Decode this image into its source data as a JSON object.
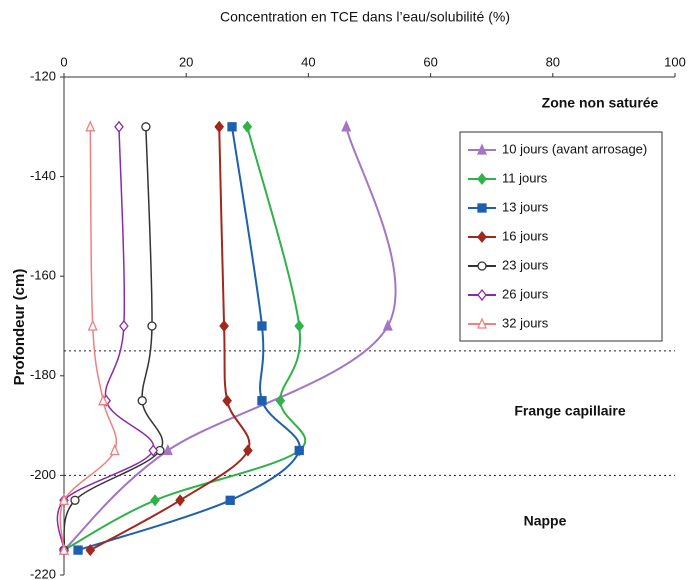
{
  "chart_data": {
    "type": "line",
    "title": "Concentration en TCE dans l’eau/solubilité (%)",
    "y_label": "Profondeur (cm)",
    "xlim": [
      0,
      100
    ],
    "xticks": [
      0,
      20,
      40,
      60,
      80,
      100
    ],
    "ylim": [
      -220,
      -120
    ],
    "yticks": [
      -120,
      -140,
      -160,
      -180,
      -200,
      -220
    ],
    "hlines": [
      -175,
      -200
    ],
    "annotations": [
      "Zone non saturée",
      "Frange capillaire",
      "Nappe"
    ],
    "legend": "upper-right",
    "series": [
      {
        "name": "10 jours (avant arrosage)",
        "color": "#a276c4",
        "marker": "triangle",
        "filled": true,
        "depths": [
          -130,
          -170,
          -195,
          -215
        ],
        "values": [
          46.2,
          53,
          17,
          0
        ]
      },
      {
        "name": "11 jours",
        "color": "#2fb24a",
        "marker": "diamond",
        "filled": true,
        "depths": [
          -130,
          -170,
          -185,
          -195,
          -205,
          -215
        ],
        "values": [
          30,
          38.5,
          35.4,
          38.5,
          14.9,
          0
        ]
      },
      {
        "name": "13 jours",
        "color": "#1f5fb0",
        "marker": "square",
        "filled": true,
        "depths": [
          -130,
          -170,
          -185,
          -195,
          -205,
          -215
        ],
        "values": [
          27.5,
          32.4,
          32.4,
          38.5,
          27.2,
          2.3
        ]
      },
      {
        "name": "16 jours",
        "color": "#a0281c",
        "marker": "diamond",
        "filled": true,
        "depths": [
          -130,
          -170,
          -185,
          -195,
          -205,
          -215
        ],
        "values": [
          25.4,
          26.2,
          26.7,
          30.1,
          19,
          4.3
        ]
      },
      {
        "name": "23 jours",
        "color": "#333333",
        "marker": "circle",
        "filled": false,
        "depths": [
          -130,
          -170,
          -185,
          -195,
          -205,
          -215
        ],
        "values": [
          13.4,
          14.4,
          12.8,
          15.7,
          1.8,
          0
        ]
      },
      {
        "name": "26 jours",
        "color": "#8a2aa8",
        "marker": "diamond",
        "filled": false,
        "depths": [
          -130,
          -170,
          -185,
          -195,
          -205,
          -215
        ],
        "values": [
          9,
          9.8,
          6.9,
          14.6,
          0,
          0
        ]
      },
      {
        "name": "32 jours",
        "color": "#f08080",
        "marker": "triangle",
        "filled": false,
        "depths": [
          -130,
          -170,
          -185,
          -195,
          -205,
          -215
        ],
        "values": [
          4.3,
          4.7,
          6.4,
          8.3,
          0,
          0
        ]
      }
    ]
  }
}
